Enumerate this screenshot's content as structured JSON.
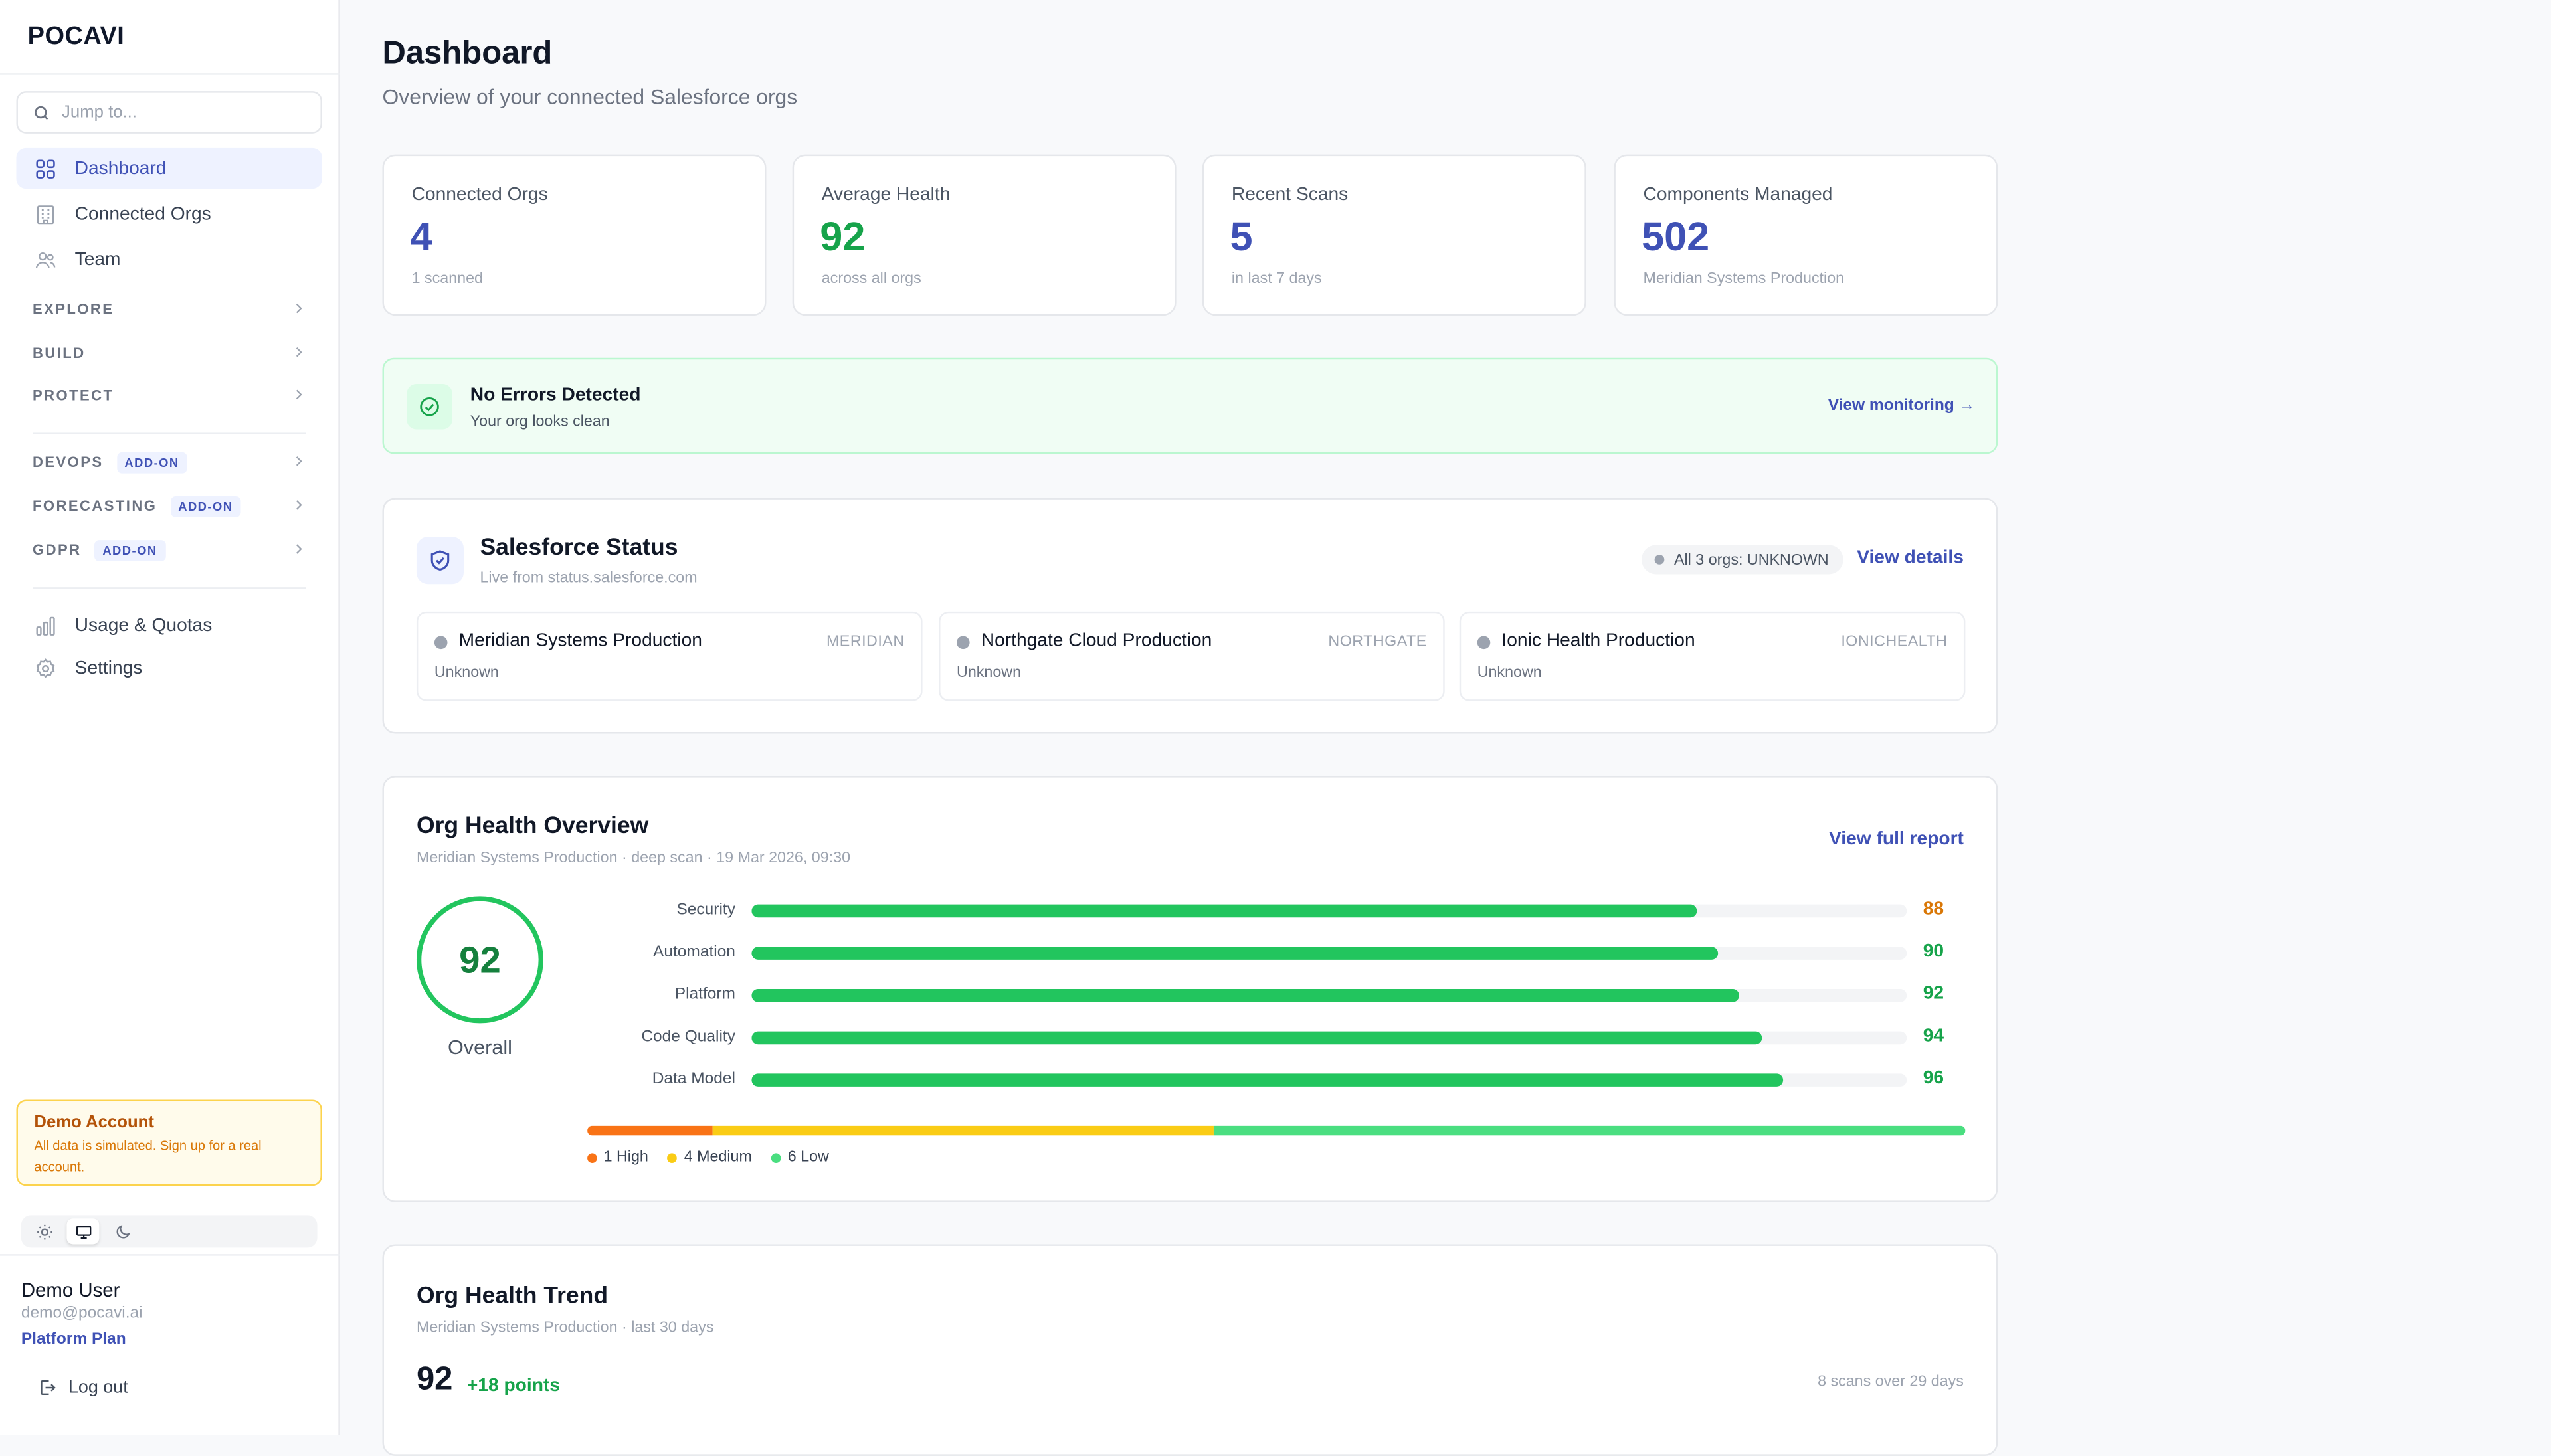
{
  "brand": {
    "name": "POCAVI"
  },
  "search": {
    "placeholder": "Jump to..."
  },
  "nav": {
    "dashboard": "Dashboard",
    "connected_orgs": "Connected Orgs",
    "team": "Team",
    "usage": "Usage & Quotas",
    "settings": "Settings"
  },
  "sections": {
    "explore": "EXPLORE",
    "build": "BUILD",
    "protect": "PROTECT",
    "devops": "DEVOPS",
    "forecasting": "FORECASTING",
    "gdpr": "GDPR",
    "addon": "ADD-ON"
  },
  "demo": {
    "title": "Demo Account",
    "desc": "All data is simulated. Sign up for a real account."
  },
  "theme": {
    "options": [
      "light",
      "system",
      "dark"
    ],
    "selected": "system"
  },
  "user": {
    "name": "Demo User",
    "email": "demo@pocavi.ai",
    "plan": "Platform Plan",
    "logout": "Log out"
  },
  "page": {
    "title": "Dashboard",
    "subtitle": "Overview of your connected Salesforce orgs"
  },
  "stats": [
    {
      "label": "Connected Orgs",
      "value": "4",
      "sub": "1 scanned",
      "color": "#3f51b5"
    },
    {
      "label": "Average Health",
      "value": "92",
      "sub": "across all orgs",
      "color": "#16a34a"
    },
    {
      "label": "Recent Scans",
      "value": "5",
      "sub": "in last 7 days",
      "color": "#3f51b5"
    },
    {
      "label": "Components Managed",
      "value": "502",
      "sub": "Meridian Systems Production",
      "color": "#3f51b5"
    }
  ],
  "errors": {
    "title": "No Errors Detected",
    "desc": "Your org looks clean",
    "link": "View monitoring →"
  },
  "sf_status": {
    "title": "Salesforce Status",
    "sub": "Live from status.salesforce.com",
    "pill": "All 3 orgs: UNKNOWN",
    "link": "View details",
    "orgs": [
      {
        "name": "Meridian Systems Production",
        "code": "MERIDIAN",
        "status": "Unknown"
      },
      {
        "name": "Northgate Cloud Production",
        "code": "NORTHGATE",
        "status": "Unknown"
      },
      {
        "name": "Ionic Health Production",
        "code": "IONICHEALTH",
        "status": "Unknown"
      }
    ]
  },
  "health": {
    "title": "Org Health Overview",
    "sub": "Meridian Systems Production · deep scan · 19 Mar 2026, 09:30",
    "link": "View full report",
    "overall": "92",
    "overall_label": "Overall",
    "rows": [
      {
        "label": "Security",
        "score": "88",
        "value": 88,
        "color": "#d97706"
      },
      {
        "label": "Automation",
        "score": "90",
        "value": 90,
        "color": "#16a34a"
      },
      {
        "label": "Platform",
        "score": "92",
        "value": 92,
        "color": "#16a34a"
      },
      {
        "label": "Code Quality",
        "score": "94",
        "value": 94,
        "color": "#16a34a"
      },
      {
        "label": "Data Model",
        "score": "96",
        "value": 96,
        "color": "#16a34a"
      }
    ],
    "severity": [
      {
        "label": "1 High",
        "count": 1,
        "color": "#f97316"
      },
      {
        "label": "4 Medium",
        "count": 4,
        "color": "#facc15"
      },
      {
        "label": "6 Low",
        "count": 6,
        "color": "#4ade80"
      }
    ]
  },
  "trend": {
    "title": "Org Health Trend",
    "sub": "Meridian Systems Production · last 30 days",
    "value": "92",
    "delta": "+18 points",
    "scans": "8 scans over 29 days"
  }
}
